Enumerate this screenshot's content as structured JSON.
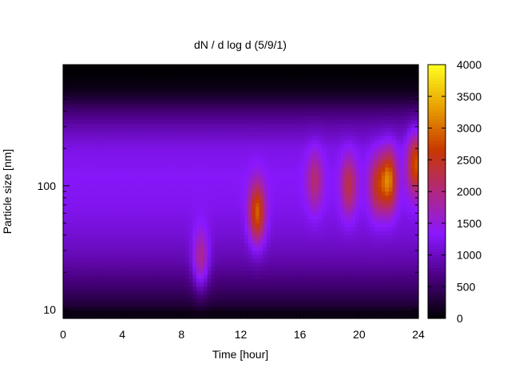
{
  "chart_data": {
    "type": "heatmap",
    "title": "dN / d log d (5/9/1)",
    "xlabel": "Time [hour]",
    "ylabel": "Particle size [nm]",
    "x_range": [
      0,
      24
    ],
    "x_ticks": [
      0,
      4,
      8,
      12,
      16,
      20,
      24
    ],
    "y_scale": "log",
    "y_range": [
      8.5,
      950
    ],
    "y_ticks": [
      10,
      100
    ],
    "colorbar": {
      "range": [
        0,
        4000
      ],
      "ticks": [
        0,
        500,
        1000,
        1500,
        2000,
        2500,
        3000,
        3500,
        4000
      ],
      "colors": [
        "#000000",
        "#4b0082",
        "#8a18ff",
        "#b02880",
        "#c83800",
        "#e8a000",
        "#ffff20"
      ]
    },
    "grid": false,
    "background_level": [
      {
        "size": 9.5,
        "value": 100
      },
      {
        "size": 11,
        "value": 300
      },
      {
        "size": 15,
        "value": 550
      },
      {
        "size": 25,
        "value": 900
      },
      {
        "size": 40,
        "value": 1100
      },
      {
        "size": 70,
        "value": 1250
      },
      {
        "size": 120,
        "value": 1300
      },
      {
        "size": 200,
        "value": 1200
      },
      {
        "size": 300,
        "value": 900
      },
      {
        "size": 400,
        "value": 600
      },
      {
        "size": 500,
        "value": 300
      },
      {
        "size": 600,
        "value": 120
      },
      {
        "size": 800,
        "value": 20
      }
    ],
    "events": [
      {
        "time": 9.3,
        "size": 25,
        "peak": 1900
      },
      {
        "time": 13.1,
        "size": 60,
        "peak": 2600
      },
      {
        "time": 17.0,
        "size": 110,
        "peak": 1700
      },
      {
        "time": 19.3,
        "size": 100,
        "peak": 1900
      },
      {
        "time": 21.2,
        "size": 100,
        "peak": 2000
      },
      {
        "time": 22.0,
        "size": 110,
        "peak": 2700
      },
      {
        "time": 23.8,
        "size": 150,
        "peak": 2500
      }
    ]
  }
}
